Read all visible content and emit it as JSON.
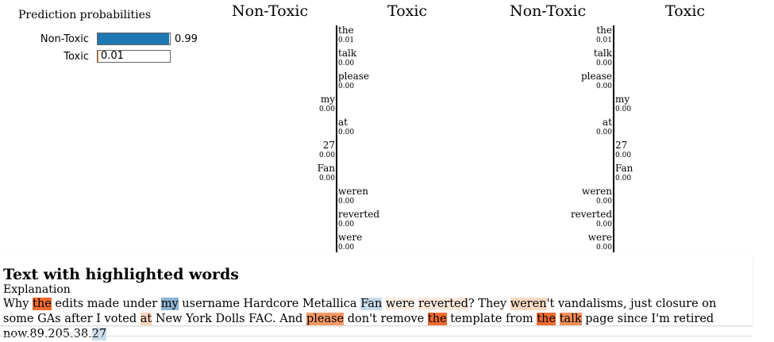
{
  "prediction": {
    "title": "Prediction probabilities",
    "rows": [
      {
        "label": "Non-Toxic",
        "value": 0.99,
        "display": "0.99",
        "color": "#1f77b4"
      },
      {
        "label": "Toxic",
        "value": 0.01,
        "display": "0.01",
        "color": "#ff7f0e"
      }
    ]
  },
  "colors": {
    "non_toxic": "#1f77b4",
    "toxic": "#ff7f0e"
  },
  "panels": [
    {
      "left_class": "Non-Toxic",
      "right_class": "Toxic",
      "features": [
        {
          "word": "the",
          "value": "0.01",
          "side": "right"
        },
        {
          "word": "talk",
          "value": "0.00",
          "side": "right"
        },
        {
          "word": "please",
          "value": "0.00",
          "side": "right"
        },
        {
          "word": "my",
          "value": "0.00",
          "side": "left"
        },
        {
          "word": "at",
          "value": "0.00",
          "side": "right"
        },
        {
          "word": "27",
          "value": "0.00",
          "side": "left"
        },
        {
          "word": "Fan",
          "value": "0.00",
          "side": "left"
        },
        {
          "word": "weren",
          "value": "0.00",
          "side": "right"
        },
        {
          "word": "reverted",
          "value": "0.00",
          "side": "right"
        },
        {
          "word": "were",
          "value": "0.00",
          "side": "right"
        }
      ]
    },
    {
      "left_class": "Non-Toxic",
      "right_class": "Toxic",
      "features": [
        {
          "word": "the",
          "value": "0.01",
          "side": "left"
        },
        {
          "word": "talk",
          "value": "0.00",
          "side": "left"
        },
        {
          "word": "please",
          "value": "0.00",
          "side": "left"
        },
        {
          "word": "my",
          "value": "0.00",
          "side": "right"
        },
        {
          "word": "at",
          "value": "0.00",
          "side": "left"
        },
        {
          "word": "27",
          "value": "0.00",
          "side": "right"
        },
        {
          "word": "Fan",
          "value": "0.00",
          "side": "right"
        },
        {
          "word": "weren",
          "value": "0.00",
          "side": "left"
        },
        {
          "word": "reverted",
          "value": "0.00",
          "side": "left"
        },
        {
          "word": "were",
          "value": "0.00",
          "side": "left"
        }
      ]
    }
  ],
  "highlight": {
    "title": "Text with highlighted words",
    "label": "Explanation",
    "tokens": [
      {
        "t": "Why "
      },
      {
        "t": "the",
        "c": "#f26b30"
      },
      {
        "t": " edits made under "
      },
      {
        "t": "my",
        "c": "#8fb4d2"
      },
      {
        "t": " username Hardcore Metallica "
      },
      {
        "t": "Fan",
        "c": "#c9dcec"
      },
      {
        "t": " "
      },
      {
        "t": "were",
        "c": "#fdf0e6"
      },
      {
        "t": " "
      },
      {
        "t": "reverted",
        "c": "#fde9dc"
      },
      {
        "t": "? They "
      },
      {
        "t": "weren",
        "c": "#fbdac4"
      },
      {
        "t": "'t vandalisms, just closure on some GAs after I voted "
      },
      {
        "t": "at",
        "c": "#fbd4b9"
      },
      {
        "t": " New York Dolls FAC. And "
      },
      {
        "t": "please",
        "c": "#f79a65"
      },
      {
        "t": " don't remove "
      },
      {
        "t": "the",
        "c": "#f26b30"
      },
      {
        "t": " template from "
      },
      {
        "t": "the",
        "c": "#f26b30"
      },
      {
        "t": " "
      },
      {
        "t": "talk",
        "c": "#f4905a"
      },
      {
        "t": " page since I'm retired now.89.205.38."
      },
      {
        "t": "27",
        "c": "#c9dcec"
      }
    ]
  }
}
